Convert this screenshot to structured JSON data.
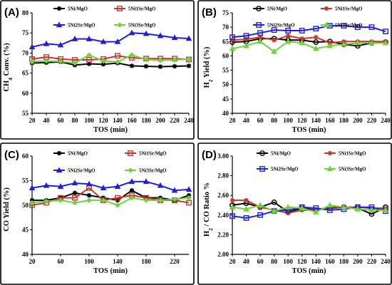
{
  "chart_data": [
    {
      "panel_label": "(A)",
      "type": "line",
      "xlabel": "TOS (min)",
      "ylabel": "CH4 Conv. (%)",
      "ylabel_main": "CH",
      "ylabel_sub": "4",
      "ylabel_rest": " Conv. (%)",
      "xlim": [
        20,
        240
      ],
      "ylim": [
        55,
        80
      ],
      "xticks": [
        20,
        40,
        60,
        80,
        100,
        120,
        140,
        160,
        180,
        200,
        220,
        240
      ],
      "yticks": [
        55,
        60,
        65,
        70,
        75,
        80
      ],
      "grid": false,
      "x": [
        20,
        40,
        60,
        80,
        100,
        120,
        140,
        160,
        180,
        200,
        220,
        240
      ],
      "series": [
        {
          "name": "5Ni/MgO",
          "color": "#000000",
          "marker": "asterisk",
          "values": [
            67.5,
            67.6,
            67.8,
            67.0,
            67.3,
            67.2,
            67.5,
            66.8,
            66.7,
            66.6,
            66.7,
            66.8
          ]
        },
        {
          "name": "5Ni1Sr/MgO",
          "color": "#c0392b",
          "marker": "square",
          "values": [
            68.5,
            69.0,
            68.5,
            68.3,
            68.3,
            68.5,
            69.3,
            68.8,
            68.6,
            68.6,
            68.6,
            68.4
          ]
        },
        {
          "name": "5Ni2Sr/MgO",
          "color": "#1f1fd6",
          "marker": "triangle",
          "values": [
            71.5,
            72.3,
            72.0,
            73.5,
            73.5,
            72.8,
            72.8,
            75.0,
            74.8,
            74.3,
            73.8,
            73.6
          ]
        },
        {
          "name": "5Ni3Sr/MgO",
          "color": "#6fd23f",
          "marker": "diamond",
          "values": [
            67.8,
            68.0,
            67.9,
            67.5,
            69.5,
            68.0,
            67.8,
            69.5,
            68.4,
            68.2,
            68.3,
            68.5
          ]
        }
      ]
    },
    {
      "panel_label": "(B)",
      "type": "line",
      "xlabel": "TOS (min)",
      "ylabel": "H2 Yield (%)",
      "ylabel_main": "H",
      "ylabel_sub": "2",
      "ylabel_rest": " Yield (%)",
      "xlim": [
        20,
        240
      ],
      "ylim": [
        40,
        75
      ],
      "xticks": [
        20,
        40,
        60,
        80,
        100,
        120,
        140,
        160,
        180,
        200,
        220,
        240
      ],
      "yticks": [
        40,
        45,
        50,
        55,
        60,
        65,
        70,
        75
      ],
      "grid": false,
      "x": [
        20,
        40,
        60,
        80,
        100,
        120,
        140,
        160,
        180,
        200,
        220,
        240
      ],
      "series": [
        {
          "name": "5Ni/MgO",
          "color": "#000000",
          "marker": "circle",
          "values": [
            64.8,
            65.0,
            66.0,
            66.0,
            65.5,
            65.5,
            64.8,
            65.0,
            64.0,
            63.5,
            64.5,
            64.8
          ]
        },
        {
          "name": "5Ni1Sr/MgO",
          "color": "#c0392b",
          "marker": "asterisk",
          "values": [
            65.5,
            65.8,
            66.5,
            65.5,
            67.0,
            66.0,
            66.5,
            64.5,
            65.0,
            65.0,
            65.0,
            65.0
          ]
        },
        {
          "name": "5Ni2Sr/MgO",
          "color": "#1f1fd6",
          "marker": "square",
          "values": [
            66.5,
            67.0,
            68.0,
            69.0,
            68.8,
            68.8,
            69.5,
            70.5,
            70.5,
            70.0,
            70.0,
            68.5
          ]
        },
        {
          "name": "5Ni3Sr/MgO",
          "color": "#6fd23f",
          "marker": "triangle",
          "values": [
            62.5,
            63.5,
            65.0,
            61.5,
            65.0,
            64.5,
            62.5,
            63.5,
            64.0,
            64.5,
            64.5,
            64.5
          ]
        }
      ]
    },
    {
      "panel_label": "(C)",
      "type": "line",
      "xlabel": "TOS (min)",
      "ylabel": "CO Yield (%)",
      "ylabel_main": "CO Yield (%)",
      "ylabel_sub": "",
      "ylabel_rest": "",
      "xlim": [
        20,
        240
      ],
      "ylim": [
        40,
        60
      ],
      "xticks": [
        20,
        60,
        100,
        140,
        180,
        220
      ],
      "yticks": [
        40,
        45,
        50,
        55,
        60
      ],
      "grid": false,
      "x": [
        20,
        40,
        60,
        80,
        100,
        120,
        140,
        160,
        180,
        200,
        220,
        240
      ],
      "series": [
        {
          "name": "5Ni/MgO",
          "color": "#000000",
          "marker": "asterisk",
          "values": [
            51.0,
            51.0,
            51.5,
            52.5,
            52.0,
            51.5,
            51.0,
            53.0,
            51.5,
            51.5,
            51.0,
            52.0
          ]
        },
        {
          "name": "5Ni1Sr/MgO",
          "color": "#c0392b",
          "marker": "square",
          "values": [
            50.0,
            50.5,
            51.5,
            51.5,
            53.5,
            51.0,
            51.5,
            52.0,
            51.5,
            51.0,
            51.0,
            50.5
          ]
        },
        {
          "name": "5Ni2Sr/MgO",
          "color": "#1f1fd6",
          "marker": "triangle",
          "values": [
            53.5,
            54.0,
            53.8,
            54.5,
            54.3,
            53.5,
            53.8,
            54.8,
            54.8,
            54.0,
            53.0,
            53.2
          ]
        },
        {
          "name": "5Ni3Sr/MgO",
          "color": "#6fd23f",
          "marker": "diamond",
          "values": [
            50.5,
            50.8,
            51.0,
            50.5,
            51.0,
            51.0,
            50.0,
            51.5,
            51.0,
            51.0,
            51.2,
            51.5
          ]
        }
      ]
    },
    {
      "panel_label": "(D)",
      "type": "line",
      "xlabel": "TOS (min)",
      "ylabel": "H2 / CO Ratio %",
      "ylabel_main": "H",
      "ylabel_sub": "2",
      "ylabel_rest": " / CO Ratio %",
      "xlim": [
        20,
        240
      ],
      "ylim": [
        2.0,
        3.0
      ],
      "xticks": [
        20,
        40,
        60,
        80,
        100,
        120,
        140,
        160,
        180,
        200,
        220,
        240
      ],
      "yticks": [
        "2.00",
        "2.20",
        "2.40",
        "2.60",
        "2.80",
        "3.00"
      ],
      "grid": false,
      "x": [
        20,
        40,
        60,
        80,
        100,
        120,
        140,
        160,
        180,
        200,
        220,
        240
      ],
      "series": [
        {
          "name": "5Ni/MgO",
          "color": "#000000",
          "marker": "circle",
          "values": [
            2.5,
            2.52,
            2.48,
            2.53,
            2.43,
            2.47,
            2.45,
            2.47,
            2.48,
            2.47,
            2.41,
            2.48
          ]
        },
        {
          "name": "5Ni1Sr/MgO",
          "color": "#c0392b",
          "marker": "asterisk",
          "values": [
            2.55,
            2.55,
            2.48,
            2.45,
            2.42,
            2.45,
            2.45,
            2.48,
            2.48,
            2.48,
            2.47,
            2.47
          ]
        },
        {
          "name": "5Ni2Sr/MgO",
          "color": "#1f1fd6",
          "marker": "square",
          "values": [
            2.39,
            2.37,
            2.4,
            2.44,
            2.45,
            2.48,
            2.47,
            2.45,
            2.46,
            2.48,
            2.48,
            2.44
          ]
        },
        {
          "name": "5Ni3Sr/MgO",
          "color": "#6fd23f",
          "marker": "triangle",
          "values": [
            2.48,
            2.46,
            2.5,
            2.44,
            2.48,
            2.47,
            2.43,
            2.5,
            2.48,
            2.46,
            2.45,
            2.45
          ]
        }
      ]
    }
  ]
}
